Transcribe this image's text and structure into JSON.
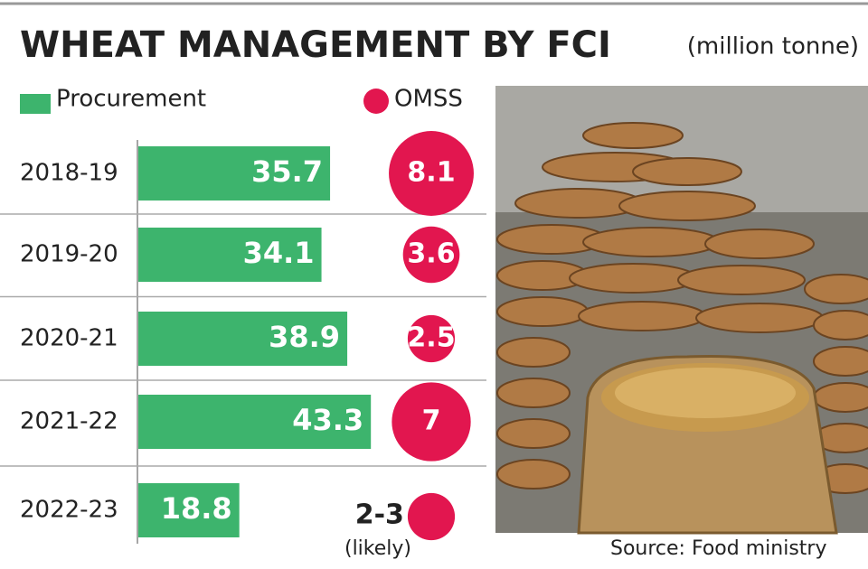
{
  "chart_data": {
    "type": "bar-bubble",
    "title": "WHEAT MANAGEMENT BY FCI",
    "subtitle": "(million tonne)",
    "categories": [
      "2018-19",
      "2019-20",
      "2020-21",
      "2021-22",
      "2022-23"
    ],
    "series": [
      {
        "name": "Procurement",
        "color": "#3db46d",
        "values": [
          35.7,
          34.1,
          38.9,
          43.3,
          18.8
        ]
      },
      {
        "name": "OMSS",
        "color": "#e2164f",
        "values": [
          8.1,
          3.6,
          2.5,
          7,
          2.5
        ],
        "value_labels": [
          "8.1",
          "3.6",
          "2.5",
          "7",
          "2-3"
        ]
      }
    ],
    "annotation": "(likely)",
    "source": "Source: Food ministry"
  }
}
